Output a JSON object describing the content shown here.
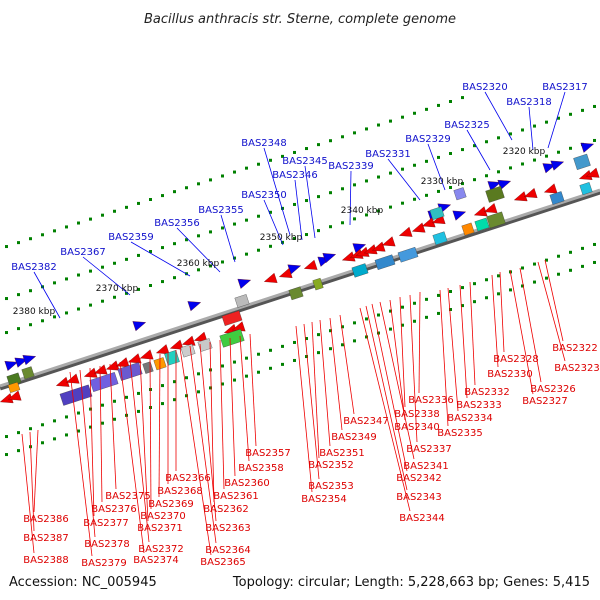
{
  "title": "Bacillus anthracis str. Sterne, complete genome",
  "footer": {
    "accession": "Accession: NC_005945",
    "summary": "Topology: circular; Length: 5,228,663 bp; Genes: 5,415"
  },
  "colors": {
    "forward": "#0000ee",
    "reverse": "#ee0000",
    "backbone": "#777777",
    "tick": "#008000"
  },
  "scale_labels": [
    "2320 kbp",
    "2330 kbp",
    "2340 kbp",
    "2350 kbp",
    "2360 kbp",
    "2370 kbp",
    "2380 kbp"
  ],
  "forward_labels": [
    "BAS2317",
    "BAS2318",
    "BAS2320",
    "BAS2325",
    "BAS2329",
    "BAS2331",
    "BAS2339",
    "BAS2345",
    "BAS2346",
    "BAS2348",
    "BAS2350",
    "BAS2355",
    "BAS2356",
    "BAS2359",
    "BAS2367",
    "BAS2382"
  ],
  "reverse_labels": [
    "BAS2322",
    "BAS2323",
    "BAS2326",
    "BAS2327",
    "BAS2328",
    "BAS2330",
    "BAS2332",
    "BAS2333",
    "BAS2334",
    "BAS2335",
    "BAS2336",
    "BAS2337",
    "BAS2338",
    "BAS2340",
    "BAS2341",
    "BAS2342",
    "BAS2343",
    "BAS2344",
    "BAS2347",
    "BAS2349",
    "BAS2351",
    "BAS2352",
    "BAS2353",
    "BAS2354",
    "BAS2357",
    "BAS2358",
    "BAS2360",
    "BAS2361",
    "BAS2362",
    "BAS2363",
    "BAS2364",
    "BAS2365",
    "BAS2366",
    "BAS2368",
    "BAS2369",
    "BAS2370",
    "BAS2371",
    "BAS2372",
    "BAS2374",
    "BAS2375",
    "BAS2376",
    "BAS2377",
    "BAS2378",
    "BAS2379",
    "BAS2386",
    "BAS2387",
    "BAS2388"
  ]
}
